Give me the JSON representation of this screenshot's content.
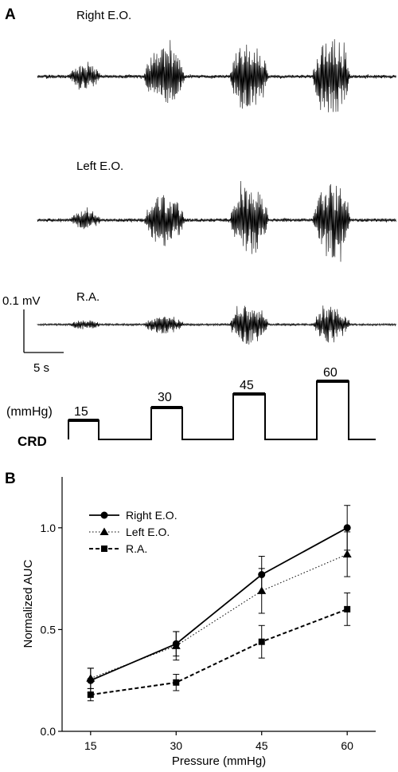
{
  "panel_a": {
    "letter": "A",
    "traces": [
      {
        "label": "Right E.O.",
        "amplitudes": [
          5,
          16,
          38,
          46,
          50
        ]
      },
      {
        "label": "Left E.O.",
        "amplitudes": [
          5,
          12,
          33,
          45,
          48
        ]
      },
      {
        "label": "R.A.",
        "amplitudes": [
          3,
          6,
          12,
          25,
          23
        ]
      }
    ],
    "scale_bar": {
      "voltage": "0.1 mV",
      "time": "5 s"
    },
    "crd": {
      "label": "CRD",
      "unit": "(mmHg)",
      "steps": [
        "15",
        "30",
        "45",
        "60"
      ]
    }
  },
  "panel_b": {
    "letter": "B",
    "chart_data": {
      "type": "line",
      "title": "",
      "xlabel": "Pressure (mmHg)",
      "ylabel": "Normalized AUC",
      "x": [
        15,
        30,
        45,
        60
      ],
      "x_ticks": [
        "15",
        "30",
        "45",
        "60"
      ],
      "y_ticks": [
        "0.0",
        "0.5",
        "1.0"
      ],
      "ylim": [
        0,
        1.25
      ],
      "legend_position": "top-left",
      "series": [
        {
          "name": "Right E.O.",
          "marker": "circle",
          "line": "solid",
          "values": [
            0.25,
            0.43,
            0.77,
            1.0
          ],
          "errors": [
            0.06,
            0.06,
            0.09,
            0.11
          ]
        },
        {
          "name": "Left E.O.",
          "marker": "triangle",
          "line": "dotted",
          "values": [
            0.26,
            0.42,
            0.69,
            0.87
          ],
          "errors": [
            0.05,
            0.07,
            0.11,
            0.11
          ]
        },
        {
          "name": "R.A.",
          "marker": "square",
          "line": "dashed",
          "values": [
            0.18,
            0.24,
            0.44,
            0.6
          ],
          "errors": [
            0.03,
            0.04,
            0.08,
            0.08
          ]
        }
      ]
    }
  }
}
